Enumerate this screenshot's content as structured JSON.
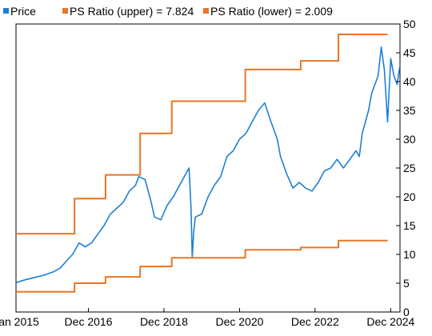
{
  "chart_data": {
    "type": "line",
    "x_axis": {
      "tick_labels": [
        "Jan 2015",
        "Dec 2016",
        "Dec 2018",
        "Dec 2020",
        "Dec 2022",
        "Dec 2024"
      ],
      "tick_dates": [
        "2015-01-01",
        "2016-12-01",
        "2018-12-01",
        "2020-12-01",
        "2022-12-01",
        "2024-12-01"
      ],
      "range": [
        "2015-01-01",
        "2025-03-01"
      ]
    },
    "y_axis": {
      "position": "right",
      "ticks": [
        0,
        5,
        10,
        15,
        20,
        25,
        30,
        35,
        40,
        45,
        50
      ],
      "range": [
        0,
        50
      ]
    },
    "grid": false,
    "legend_position": "top-left",
    "series": [
      {
        "name": "Price",
        "style": "line",
        "color": "#1e7fd6",
        "points": [
          [
            "2015-01-01",
            5.1
          ],
          [
            "2015-04-01",
            5.6
          ],
          [
            "2015-07-01",
            6.0
          ],
          [
            "2015-10-01",
            6.4
          ],
          [
            "2016-01-01",
            7.0
          ],
          [
            "2016-03-01",
            7.6
          ],
          [
            "2016-05-01",
            8.8
          ],
          [
            "2016-07-01",
            10.0
          ],
          [
            "2016-09-01",
            12.0
          ],
          [
            "2016-11-01",
            11.3
          ],
          [
            "2017-01-01",
            12.0
          ],
          [
            "2017-03-01",
            13.5
          ],
          [
            "2017-05-01",
            15.0
          ],
          [
            "2017-07-01",
            17.0
          ],
          [
            "2017-09-01",
            18.0
          ],
          [
            "2017-11-01",
            19.0
          ],
          [
            "2018-01-01",
            21.0
          ],
          [
            "2018-03-01",
            22.0
          ],
          [
            "2018-04-01",
            23.5
          ],
          [
            "2018-06-01",
            23.0
          ],
          [
            "2018-08-01",
            19.0
          ],
          [
            "2018-09-01",
            16.5
          ],
          [
            "2018-11-01",
            16.0
          ],
          [
            "2019-01-01",
            18.5
          ],
          [
            "2019-03-01",
            20.0
          ],
          [
            "2019-05-01",
            22.0
          ],
          [
            "2019-07-01",
            24.0
          ],
          [
            "2019-08-01",
            25.0
          ],
          [
            "2019-08-20",
            18.0
          ],
          [
            "2019-09-01",
            9.5
          ],
          [
            "2019-09-15",
            14.0
          ],
          [
            "2019-10-01",
            16.5
          ],
          [
            "2019-12-01",
            17.0
          ],
          [
            "2020-02-01",
            20.0
          ],
          [
            "2020-04-01",
            22.0
          ],
          [
            "2020-06-01",
            23.5
          ],
          [
            "2020-08-01",
            27.0
          ],
          [
            "2020-10-01",
            28.0
          ],
          [
            "2020-12-01",
            30.0
          ],
          [
            "2021-02-01",
            31.0
          ],
          [
            "2021-04-01",
            33.0
          ],
          [
            "2021-06-01",
            35.0
          ],
          [
            "2021-08-01",
            36.3
          ],
          [
            "2021-10-01",
            33.0
          ],
          [
            "2021-12-01",
            30.0
          ],
          [
            "2022-01-01",
            27.0
          ],
          [
            "2022-03-01",
            24.0
          ],
          [
            "2022-05-01",
            21.5
          ],
          [
            "2022-07-01",
            22.5
          ],
          [
            "2022-09-01",
            21.5
          ],
          [
            "2022-11-01",
            21.0
          ],
          [
            "2023-01-01",
            22.5
          ],
          [
            "2023-03-01",
            24.5
          ],
          [
            "2023-05-01",
            25.0
          ],
          [
            "2023-07-01",
            26.5
          ],
          [
            "2023-09-01",
            25.0
          ],
          [
            "2023-11-01",
            26.5
          ],
          [
            "2024-01-01",
            28.0
          ],
          [
            "2024-02-01",
            27.0
          ],
          [
            "2024-03-01",
            31.0
          ],
          [
            "2024-05-01",
            35.0
          ],
          [
            "2024-06-01",
            38.0
          ],
          [
            "2024-08-01",
            41.0
          ],
          [
            "2024-09-01",
            46.0
          ],
          [
            "2024-10-01",
            42.0
          ],
          [
            "2024-11-01",
            33.0
          ],
          [
            "2024-12-01",
            44.0
          ],
          [
            "2025-01-01",
            41.0
          ],
          [
            "2025-02-01",
            39.5
          ],
          [
            "2025-02-25",
            42.5
          ]
        ]
      },
      {
        "name": "PS Ratio (upper) = 7.824",
        "style": "step",
        "color": "#e87524",
        "points": [
          [
            "2015-01-01",
            13.6
          ],
          [
            "2016-07-20",
            19.7
          ],
          [
            "2017-05-15",
            23.8
          ],
          [
            "2018-04-15",
            31.0
          ],
          [
            "2019-02-15",
            36.6
          ],
          [
            "2021-01-25",
            42.1
          ],
          [
            "2022-07-15",
            43.6
          ],
          [
            "2023-07-15",
            48.2
          ],
          [
            "2024-11-01",
            48.2
          ]
        ]
      },
      {
        "name": "PS Ratio (lower) = 2.009",
        "style": "step",
        "color": "#e87524",
        "points": [
          [
            "2015-01-01",
            3.5
          ],
          [
            "2016-07-20",
            5.0
          ],
          [
            "2017-05-15",
            6.1
          ],
          [
            "2018-04-15",
            7.9
          ],
          [
            "2019-02-15",
            9.4
          ],
          [
            "2021-01-25",
            10.8
          ],
          [
            "2022-07-15",
            11.2
          ],
          [
            "2023-07-15",
            12.4
          ],
          [
            "2024-11-01",
            12.4
          ]
        ]
      }
    ]
  }
}
